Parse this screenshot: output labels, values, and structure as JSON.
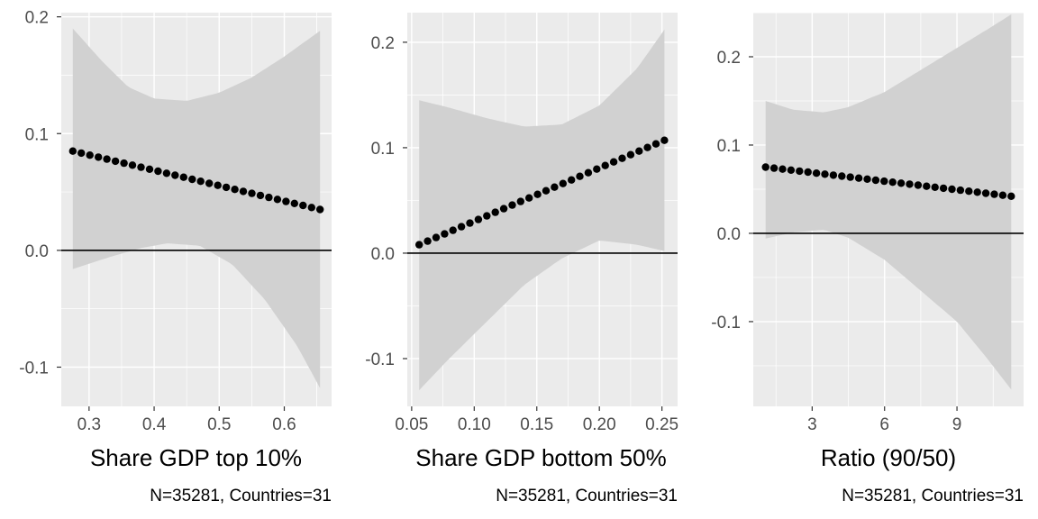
{
  "colors": {
    "panel_bg": "#ebebeb",
    "grid_major": "#ffffff",
    "ribbon": "#d1d1d1",
    "point": "#000000",
    "ref_line": "#000000",
    "tick_label": "#4d4d4d"
  },
  "chart_data": [
    {
      "type": "line",
      "title": "",
      "xlabel": "Share GDP top 10%",
      "ylabel": "",
      "caption": "N=35281, Countries=31",
      "xlim": [
        0.2573,
        0.6727
      ],
      "ylim": [
        -0.1336,
        0.2036
      ],
      "x_ticks": [
        0.3,
        0.4,
        0.5,
        0.6
      ],
      "x_tick_labels": [
        "0.3",
        "0.4",
        "0.5",
        "0.6"
      ],
      "y_ticks": [
        -0.1,
        0.0,
        0.1,
        0.2
      ],
      "y_tick_labels": [
        "-0.1",
        "0.0",
        "0.1",
        "0.2"
      ],
      "hline": 0,
      "grid": true,
      "series": [
        {
          "x_start": 0.275,
          "x_end": 0.655,
          "n_points": 30,
          "y_start": 0.085,
          "y_end": 0.035,
          "lower": [
            [
              0.275,
              -0.016
            ],
            [
              0.33,
              -0.006
            ],
            [
              0.38,
              0.002
            ],
            [
              0.42,
              0.006
            ],
            [
              0.47,
              0.004
            ],
            [
              0.52,
              -0.012
            ],
            [
              0.57,
              -0.042
            ],
            [
              0.62,
              -0.082
            ],
            [
              0.655,
              -0.118
            ]
          ],
          "upper": [
            [
              0.275,
              0.19
            ],
            [
              0.32,
              0.162
            ],
            [
              0.36,
              0.14
            ],
            [
              0.4,
              0.13
            ],
            [
              0.45,
              0.128
            ],
            [
              0.5,
              0.135
            ],
            [
              0.55,
              0.148
            ],
            [
              0.6,
              0.166
            ],
            [
              0.655,
              0.188
            ]
          ]
        }
      ]
    },
    {
      "type": "line",
      "title": "",
      "xlabel": "Share GDP bottom 50%",
      "ylabel": "",
      "caption": "N=35281, Countries=31",
      "xlim": [
        0.0465,
        0.2625
      ],
      "ylim": [
        -0.1453,
        0.2281
      ],
      "x_ticks": [
        0.05,
        0.1,
        0.15,
        0.2,
        0.25
      ],
      "x_tick_labels": [
        "0.05",
        "0.10",
        "0.15",
        "0.20",
        "0.25"
      ],
      "y_ticks": [
        -0.1,
        0.0,
        0.1,
        0.2
      ],
      "y_tick_labels": [
        "-0.1",
        "0.0",
        "0.1",
        "0.2"
      ],
      "hline": 0,
      "grid": true,
      "series": [
        {
          "x_start": 0.056,
          "x_end": 0.252,
          "n_points": 30,
          "y_start": 0.008,
          "y_end": 0.107,
          "lower": [
            [
              0.056,
              -0.13
            ],
            [
              0.08,
              -0.1
            ],
            [
              0.11,
              -0.065
            ],
            [
              0.14,
              -0.03
            ],
            [
              0.17,
              -0.005
            ],
            [
              0.2,
              0.012
            ],
            [
              0.23,
              0.008
            ],
            [
              0.252,
              0.002
            ]
          ],
          "upper": [
            [
              0.056,
              0.145
            ],
            [
              0.08,
              0.138
            ],
            [
              0.11,
              0.128
            ],
            [
              0.14,
              0.12
            ],
            [
              0.17,
              0.122
            ],
            [
              0.2,
              0.14
            ],
            [
              0.23,
              0.175
            ],
            [
              0.252,
              0.212
            ]
          ]
        }
      ]
    },
    {
      "type": "line",
      "title": "",
      "xlabel": "Ratio (90/50)",
      "ylabel": "",
      "caption": "N=35281, Countries=31",
      "xlim": [
        0.56,
        11.76
      ],
      "ylim": [
        -0.196,
        0.25
      ],
      "x_ticks": [
        3,
        6,
        9
      ],
      "x_tick_labels": [
        "3",
        "6",
        "9"
      ],
      "y_ticks": [
        -0.1,
        0.0,
        0.1,
        0.2
      ],
      "y_tick_labels": [
        "-0.1",
        "0.0",
        "0.1",
        "0.2"
      ],
      "hline": 0,
      "grid": true,
      "series": [
        {
          "x_start": 1.07,
          "x_end": 11.25,
          "n_points": 30,
          "y_start": 0.075,
          "y_end": 0.042,
          "lower": [
            [
              1.07,
              -0.006
            ],
            [
              2.2,
              0.001
            ],
            [
              3.5,
              0.004
            ],
            [
              4.5,
              -0.005
            ],
            [
              6.0,
              -0.03
            ],
            [
              7.5,
              -0.065
            ],
            [
              9.0,
              -0.1
            ],
            [
              10.2,
              -0.14
            ],
            [
              11.25,
              -0.177
            ]
          ],
          "upper": [
            [
              1.07,
              0.15
            ],
            [
              2.2,
              0.14
            ],
            [
              3.5,
              0.137
            ],
            [
              4.5,
              0.143
            ],
            [
              6.0,
              0.16
            ],
            [
              7.5,
              0.185
            ],
            [
              9.0,
              0.21
            ],
            [
              10.2,
              0.23
            ],
            [
              11.25,
              0.248
            ]
          ]
        }
      ]
    }
  ]
}
